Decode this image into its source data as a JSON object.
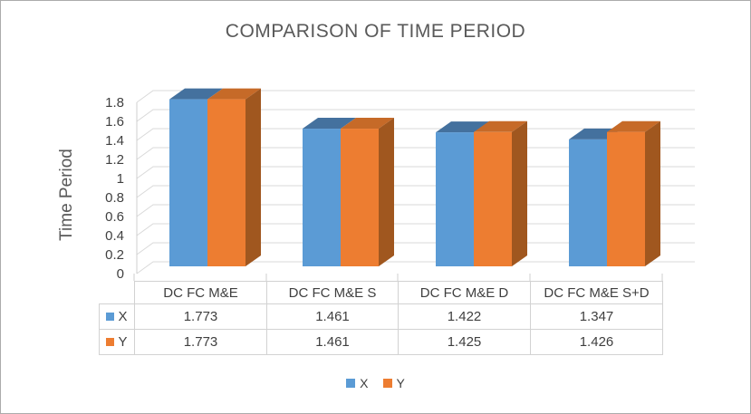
{
  "chart_data": {
    "type": "bar",
    "style": "3d-clustered-column",
    "title": "COMPARISON OF TIME PERIOD",
    "xlabel": "",
    "ylabel": "Time Period",
    "categories": [
      "DC FC M&E",
      "DC FC M&E S",
      "DC FC M&E D",
      "DC FC M&E S+D"
    ],
    "series": [
      {
        "name": "X",
        "color": "#5B9BD5",
        "color_top": "#44719E",
        "color_side": "#3A618B",
        "values": [
          1.773,
          1.461,
          1.422,
          1.347
        ]
      },
      {
        "name": "Y",
        "color": "#ED7D31",
        "color_top": "#C66A28",
        "color_side": "#A0571F",
        "values": [
          1.773,
          1.461,
          1.425,
          1.426
        ]
      }
    ],
    "ylim": [
      0,
      1.8
    ],
    "yticks": [
      0,
      0.2,
      0.4,
      0.6,
      0.8,
      1,
      1.2,
      1.4,
      1.6,
      1.8
    ],
    "ytick_labels": [
      "0",
      "0.2",
      "0.4",
      "0.6",
      "0.8",
      "1",
      "1.2",
      "1.4",
      "1.6",
      "1.8"
    ],
    "grid": true,
    "legend_position": "bottom"
  },
  "data_table": {
    "corner": "",
    "categories": [
      "DC FC M&E",
      "DC FC M&E S",
      "DC FC M&E D",
      "DC FC M&E S+D"
    ],
    "rows": [
      {
        "key": "X",
        "color": "#5B9BD5",
        "values": [
          "1.773",
          "1.461",
          "1.422",
          "1.347"
        ]
      },
      {
        "key": "Y",
        "color": "#ED7D31",
        "values": [
          "1.773",
          "1.461",
          "1.425",
          "1.426"
        ]
      }
    ]
  },
  "legend": {
    "items": [
      {
        "label": "X",
        "color": "#5B9BD5"
      },
      {
        "label": "Y",
        "color": "#ED7D31"
      }
    ]
  },
  "colors": {
    "title_text": "#595959",
    "axis_text": "#404040",
    "gridline": "#D9D9D9",
    "axis_line": "#CFCFCF",
    "table_border": "#D2D2D2",
    "page_border": "#ABABAB",
    "background": "#FFFFFF"
  }
}
